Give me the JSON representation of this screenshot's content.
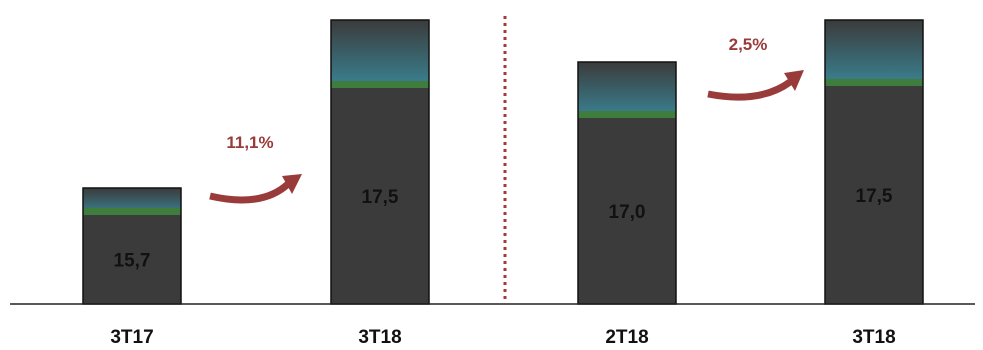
{
  "chart_data": {
    "type": "bar",
    "categories": [
      "3T17",
      "3T18",
      "2T18",
      "3T18"
    ],
    "values": [
      15.7,
      17.5,
      17.0,
      17.5
    ],
    "value_labels": [
      "15,7",
      "17,5",
      "17,0",
      "17,5"
    ],
    "stack_parts": {
      "base_totals": [
        15.7,
        17.5,
        17.0,
        17.5
      ]
    },
    "title": "",
    "xlabel": "",
    "ylabel": "",
    "ylim": [
      0,
      28
    ],
    "grid": false,
    "legend": "none",
    "growth_annotations": [
      {
        "from": 0,
        "to": 1,
        "label": "11,1%"
      },
      {
        "from": 2,
        "to": 3,
        "label": "2,5%"
      }
    ],
    "divider": {
      "between": [
        1,
        2
      ],
      "style": "dotted"
    }
  },
  "colors": {
    "bar_fill": "#3b3b3b",
    "bar_stroke": "#111111",
    "green_band": "#3e7d3e",
    "teal_top": "#3a7a8a",
    "arrow": "#9a3b3b",
    "divider": "#a23a3a",
    "axis": "#222222"
  }
}
